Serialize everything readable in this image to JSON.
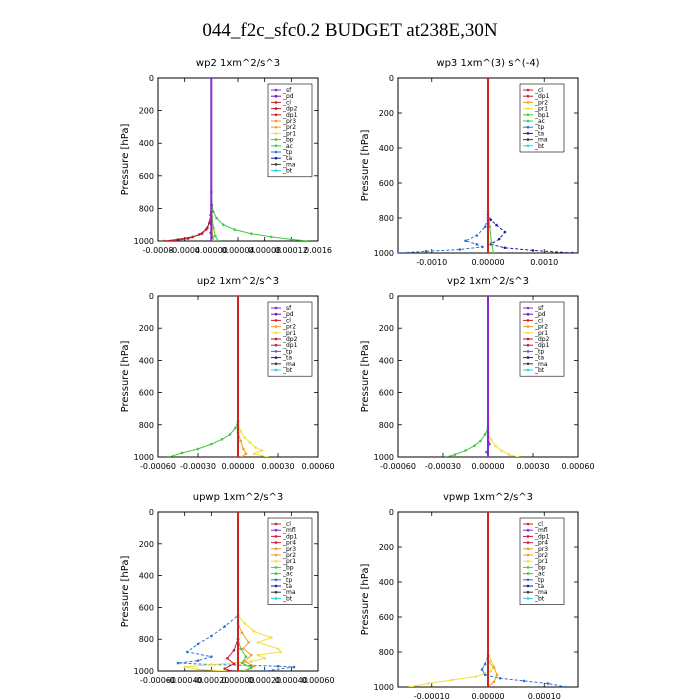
{
  "figure_title": "044_f2c_sfc0.2  BUDGET at238E,30N",
  "colors": {
    "sf": "#8c28d2",
    "pd": "#6a1bb3",
    "cl": "#d32020",
    "dp2": "#b41e28",
    "dp1": "#c81e3c",
    "pr3": "#f09628",
    "pr2": "#f2a020",
    "pr1": "#f0e040",
    "bp": "#3cd23c",
    "ac": "#46c846",
    "tp": "#2874d2",
    "ta": "#1e1ea0",
    "ma": "#3c3c3c",
    "bt": "#28d2e6",
    "mt": "#8c28d2",
    "pr4": "#d02050"
  },
  "chart_data": [
    {
      "type": "line",
      "title": "wp2   1xm^2/s^3",
      "ylabel": "Pressure [hPa]",
      "xlim": [
        -0.0008,
        0.0016
      ],
      "ylim": [
        1000,
        0
      ],
      "xticks": [
        "-0.0008",
        "-0.0004",
        "0.00000",
        "0.00004",
        "0.00008",
        "0.00012",
        "0.0016"
      ],
      "yticks": [
        "0",
        "200",
        "400",
        "600",
        "800",
        "1000"
      ],
      "legend": [
        "_sf",
        "_pd",
        "_cl",
        "_dp2",
        "_dp1",
        "_pr3",
        "_pr2",
        "_pr1",
        "_bp",
        "_ac",
        "_tp",
        "_ta",
        "_ma",
        "_bt"
      ],
      "series": [
        {
          "name": "_ac",
          "color": "ac",
          "x": [
            0,
            0,
            1e-05,
            3e-05,
            8e-05,
            0.00018,
            0.00035,
            0.0006,
            0.0009,
            0.0012,
            0.00145
          ],
          "y": [
            0,
            700,
            780,
            820,
            860,
            900,
            930,
            955,
            975,
            990,
            1000
          ]
        },
        {
          "name": "_bp",
          "color": "bp",
          "x": [
            0,
            0,
            1e-05,
            3e-05,
            6e-05,
            0.0001
          ],
          "y": [
            0,
            780,
            850,
            920,
            970,
            1000
          ]
        },
        {
          "name": "_dp1",
          "color": "dp1",
          "x": [
            0,
            0,
            -1e-05,
            -3e-05,
            -8e-05,
            -0.00018,
            -0.00035,
            -0.0006
          ],
          "y": [
            0,
            780,
            840,
            890,
            930,
            960,
            985,
            1000
          ]
        },
        {
          "name": "_dp2",
          "color": "dp2",
          "x": [
            0,
            0,
            -2e-05,
            -6e-05,
            -0.00014,
            -0.00028,
            -0.0005,
            -0.0007
          ],
          "y": [
            0,
            820,
            880,
            920,
            955,
            975,
            990,
            1000
          ]
        },
        {
          "name": "_pr2",
          "color": "pr2",
          "x": [
            0,
            0,
            1e-05,
            2e-05,
            4e-05
          ],
          "y": [
            0,
            850,
            920,
            970,
            1000
          ]
        },
        {
          "name": "_tp",
          "color": "tp",
          "x": [
            0,
            0,
            -1e-05,
            1e-05,
            0
          ],
          "y": [
            0,
            900,
            950,
            980,
            1000
          ]
        },
        {
          "name": "_sf",
          "color": "sf",
          "x": [
            0,
            0
          ],
          "y": [
            0,
            1000
          ]
        }
      ]
    },
    {
      "type": "line",
      "title": "wp3   1xm^(3) s^(-4)",
      "ylabel": "Pressure [hPa]",
      "xlim": [
        -0.0016,
        0.0016
      ],
      "ylim": [
        1000,
        0
      ],
      "xticks": [
        "-0.0010",
        "0.00000",
        "0.0010"
      ],
      "yticks": [
        "0",
        "200",
        "400",
        "600",
        "800",
        "1000"
      ],
      "legend": [
        "_cl",
        "_dp1",
        "_pr2",
        "_pr1",
        "_bp1",
        "_ac",
        "_tp",
        "_ta",
        "_ma",
        "_bt"
      ],
      "series": [
        {
          "name": "_ta",
          "color": "ta",
          "x": [
            0,
            0,
            5e-05,
            0.00015,
            0.0003,
            0.0002,
            5e-05,
            0.0003,
            0.0008,
            0.0015
          ],
          "y": [
            0,
            780,
            810,
            840,
            880,
            920,
            950,
            970,
            985,
            1000
          ]
        },
        {
          "name": "_tp",
          "color": "tp",
          "x": [
            0,
            0,
            -5e-05,
            -0.0002,
            -0.0004,
            -0.0002,
            -0.0001,
            -0.0005,
            -0.0011,
            -0.0016
          ],
          "y": [
            0,
            800,
            850,
            900,
            930,
            950,
            965,
            980,
            990,
            1000
          ]
        },
        {
          "name": "_ac",
          "color": "ac",
          "x": [
            0,
            0,
            3e-05,
            6e-05,
            0.0001
          ],
          "y": [
            0,
            760,
            850,
            940,
            1000
          ]
        },
        {
          "name": "_cl",
          "color": "cl",
          "x": [
            0,
            0
          ],
          "y": [
            0,
            1000
          ]
        }
      ]
    },
    {
      "type": "line",
      "title": "up2   1xm^2/s^3",
      "ylabel": "Pressure [hPa]",
      "xlim": [
        -0.0006,
        0.0006
      ],
      "ylim": [
        1000,
        0
      ],
      "xticks": [
        "-0.00060",
        "-0.00030",
        "0.00000",
        "0.00030",
        "0.00060"
      ],
      "yticks": [
        "0",
        "200",
        "400",
        "600",
        "800",
        "1000"
      ],
      "legend": [
        "_sf",
        "_pd",
        "_cl",
        "_pr2",
        "_pr1",
        "_dp2",
        "_dp1",
        "_tp",
        "_ta",
        "_ma",
        "_bt"
      ],
      "series": [
        {
          "name": "_ac",
          "color": "ac",
          "x": [
            0,
            0,
            -2e-05,
            -6e-05,
            -0.00012,
            -0.0002,
            -0.0003,
            -0.00042,
            -0.00052
          ],
          "y": [
            0,
            780,
            820,
            860,
            890,
            920,
            950,
            975,
            1000
          ]
        },
        {
          "name": "_pr1",
          "color": "pr1",
          "x": [
            0,
            0,
            2e-05,
            5e-05,
            9e-05,
            0.00013,
            0.00018,
            0.00012,
            0.00022
          ],
          "y": [
            0,
            800,
            840,
            880,
            910,
            940,
            960,
            980,
            1000
          ]
        },
        {
          "name": "_pr2",
          "color": "pr2",
          "x": [
            0,
            0,
            2e-05,
            4e-05,
            6e-05,
            3e-05
          ],
          "y": [
            0,
            850,
            900,
            950,
            980,
            1000
          ]
        },
        {
          "name": "_cl",
          "color": "cl",
          "x": [
            0,
            0
          ],
          "y": [
            0,
            1000
          ]
        }
      ]
    },
    {
      "type": "line",
      "title": "vp2   1xm^2/s^3",
      "ylabel": "Pressure [hPa]",
      "xlim": [
        -0.0006,
        0.0006
      ],
      "ylim": [
        1000,
        0
      ],
      "xticks": [
        "-0.00060",
        "-0.00030",
        "0.00000",
        "0.00030",
        "0.00060"
      ],
      "yticks": [
        "0",
        "200",
        "400",
        "600",
        "800",
        "1000"
      ],
      "legend": [
        "_sf",
        "_pd",
        "_cl",
        "_pr2",
        "_pr1",
        "_dp2",
        "_dp1",
        "_tp",
        "_ta",
        "_ma",
        "_bt"
      ],
      "series": [
        {
          "name": "_ac",
          "color": "ac",
          "x": [
            0,
            0,
            -2e-05,
            -5e-05,
            -9e-05,
            -0.00015,
            -0.00022,
            -0.00028
          ],
          "y": [
            0,
            820,
            860,
            900,
            930,
            960,
            985,
            1000
          ]
        },
        {
          "name": "_pr1",
          "color": "pr1",
          "x": [
            0,
            0,
            2e-05,
            5e-05,
            9e-05,
            0.00014,
            0.0002
          ],
          "y": [
            0,
            850,
            890,
            930,
            960,
            985,
            1000
          ]
        },
        {
          "name": "_tp",
          "color": "tp",
          "x": [
            0,
            0,
            1e-05,
            -1e-05,
            0
          ],
          "y": [
            0,
            850,
            920,
            970,
            1000
          ]
        },
        {
          "name": "_sf",
          "color": "sf",
          "x": [
            0,
            0
          ],
          "y": [
            0,
            1000
          ]
        }
      ]
    },
    {
      "type": "line",
      "title": "upwp   1xm^2/s^3",
      "ylabel": "Pressure [hPa]",
      "xlim": [
        -0.0006,
        0.0006
      ],
      "ylim": [
        1000,
        0
      ],
      "xticks": [
        "-0.00060",
        "-0.00040",
        "-0.00020",
        "0.00000",
        "0.00020",
        "0.00040",
        "0.00060"
      ],
      "yticks": [
        "0",
        "200",
        "400",
        "600",
        "800",
        "1000"
      ],
      "legend": [
        "_cl",
        "_mfl",
        "_dp1",
        "_pr4",
        "_pr3",
        "_pr2",
        "_pr1",
        "_bp",
        "_ac",
        "_tp",
        "_ta",
        "_ma",
        "_bt"
      ],
      "series": [
        {
          "name": "_tp",
          "color": "tp",
          "x": [
            0,
            0,
            -0.0001,
            -0.0002,
            -0.0003,
            -0.00038,
            -0.0002,
            -0.0003,
            -0.00045,
            -0.0002,
            0.0001,
            0.0003,
            0.00042,
            0.0002
          ],
          "y": [
            0,
            650,
            720,
            780,
            830,
            880,
            910,
            935,
            950,
            960,
            965,
            970,
            975,
            1000
          ]
        },
        {
          "name": "_pr1",
          "color": "pr1",
          "x": [
            0,
            0,
            5e-05,
            0.00012,
            0.00025,
            0.00015,
            0.0003,
            0.00032,
            0.00015,
            0.0002,
            0.0001,
            -0.0002,
            -0.0004,
            -0.0003,
            -0.0001
          ],
          "y": [
            0,
            650,
            700,
            750,
            790,
            820,
            860,
            880,
            900,
            920,
            940,
            960,
            975,
            990,
            1000
          ]
        },
        {
          "name": "_pr2",
          "color": "pr2",
          "x": [
            0,
            0,
            3e-05,
            8e-05,
            4e-05,
            0.0001,
            5e-05,
            0.00012,
            6e-05
          ],
          "y": [
            0,
            700,
            760,
            820,
            860,
            900,
            940,
            970,
            1000
          ]
        },
        {
          "name": "_ac",
          "color": "ac",
          "x": [
            0,
            0,
            2e-05,
            6e-05,
            3e-05,
            0.0001,
            4e-05
          ],
          "y": [
            0,
            800,
            860,
            910,
            950,
            980,
            1000
          ]
        },
        {
          "name": "_dp1",
          "color": "dp1",
          "x": [
            0,
            0,
            -3e-05,
            -8e-05,
            -3e-05,
            -0.0001,
            -5e-05
          ],
          "y": [
            0,
            800,
            870,
            920,
            955,
            985,
            1000
          ]
        },
        {
          "name": "_cl",
          "color": "cl",
          "x": [
            0,
            0
          ],
          "y": [
            0,
            1000
          ]
        }
      ]
    },
    {
      "type": "line",
      "title": "vpwp   1xm^2/s^3",
      "ylabel": "Pressure [hPa]",
      "xlim": [
        -0.00015,
        0.00015
      ],
      "ylim": [
        1000,
        0
      ],
      "xticks": [
        "-0.00010",
        "0.00000",
        "0.00010"
      ],
      "yticks": [
        "0",
        "200",
        "400",
        "600",
        "800",
        "1000"
      ],
      "legend": [
        "_cl",
        "_mfl",
        "_dp1",
        "_pr4",
        "_pr3",
        "_pr2",
        "_pr1",
        "_bp",
        "_ac",
        "_tp",
        "_ta",
        "_ma",
        "_bt"
      ],
      "series": [
        {
          "name": "_pr1",
          "color": "pr1",
          "x": [
            0,
            0,
            5e-06,
            1e-05,
            5e-06,
            -2e-05,
            -6e-05,
            -0.0001,
            -0.00013
          ],
          "y": [
            0,
            800,
            850,
            880,
            910,
            940,
            960,
            980,
            1000
          ]
        },
        {
          "name": "_tp",
          "color": "tp",
          "x": [
            0,
            0,
            -5e-06,
            -1e-05,
            -5e-06,
            2e-05,
            6e-05,
            0.0001,
            0.00013
          ],
          "y": [
            0,
            820,
            870,
            900,
            930,
            950,
            965,
            980,
            1000
          ]
        },
        {
          "name": "_pr2",
          "color": "pr2",
          "x": [
            0,
            0,
            1e-05,
            1.5e-05,
            1e-05,
            0
          ],
          "y": [
            0,
            850,
            890,
            930,
            970,
            1000
          ]
        },
        {
          "name": "_cl",
          "color": "cl",
          "x": [
            0,
            0
          ],
          "y": [
            0,
            1000
          ]
        }
      ]
    }
  ]
}
